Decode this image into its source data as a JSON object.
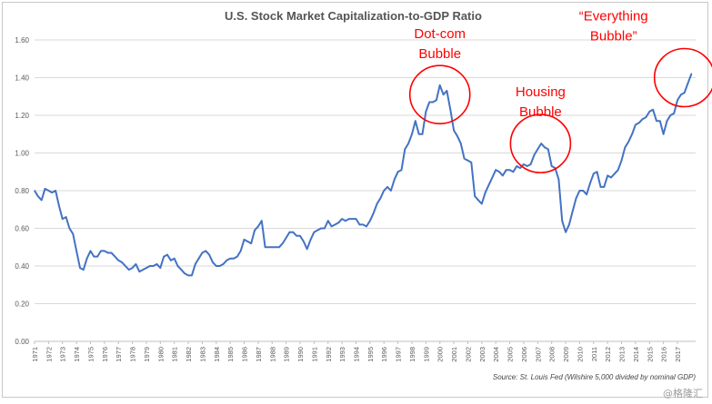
{
  "chart_data": {
    "type": "line",
    "title": "U.S. Stock Market Capitalization-to-GDP Ratio",
    "source": "Source: St. Louis Fed (Wilshire 5,000 divided by nominal GDP)",
    "xlabel": "",
    "ylabel": "",
    "ylim": [
      0,
      1.6
    ],
    "yticks": [
      "0.00",
      "0.20",
      "0.40",
      "0.60",
      "0.80",
      "1.00",
      "1.20",
      "1.40",
      "1.60"
    ],
    "xlim": [
      1971,
      2018.3
    ],
    "xticks": [
      "1971",
      "1972",
      "1973",
      "1974",
      "1975",
      "1976",
      "1977",
      "1978",
      "1979",
      "1980",
      "1981",
      "1982",
      "1983",
      "1984",
      "1985",
      "1986",
      "1987",
      "1988",
      "1989",
      "1990",
      "1991",
      "1992",
      "1993",
      "1994",
      "1995",
      "1996",
      "1997",
      "1998",
      "1999",
      "2000",
      "2001",
      "2002",
      "2003",
      "2004",
      "2005",
      "2006",
      "2007",
      "2008",
      "2009",
      "2010",
      "2011",
      "2012",
      "2013",
      "2014",
      "2015",
      "2016",
      "2017"
    ],
    "grid": true,
    "series_color": "#4472c4",
    "series": [
      {
        "x": [
          1971.0,
          1971.25,
          1971.5,
          1971.75,
          1972.0,
          1972.25,
          1972.5,
          1972.75,
          1973.0,
          1973.25,
          1973.5,
          1973.75,
          1974.0,
          1974.25,
          1974.5,
          1974.75,
          1975.0,
          1975.25,
          1975.5,
          1975.75,
          1976.0,
          1976.25,
          1976.5,
          1976.75,
          1977.0,
          1977.25,
          1977.5,
          1977.75,
          1978.0,
          1978.25,
          1978.5,
          1978.75,
          1979.0,
          1979.25,
          1979.5,
          1979.75,
          1980.0,
          1980.25,
          1980.5,
          1980.75,
          1981.0,
          1981.25,
          1981.5,
          1981.75,
          1982.0,
          1982.25,
          1982.5,
          1982.75,
          1983.0,
          1983.25,
          1983.5,
          1983.75,
          1984.0,
          1984.25,
          1984.5,
          1984.75,
          1985.0,
          1985.25,
          1985.5,
          1985.75,
          1986.0,
          1986.25,
          1986.5,
          1986.75,
          1987.0,
          1987.25,
          1987.5,
          1987.75,
          1988.0,
          1988.25,
          1988.5,
          1988.75,
          1989.0,
          1989.25,
          1989.5,
          1989.75,
          1990.0,
          1990.25,
          1990.5,
          1990.75,
          1991.0,
          1991.25,
          1991.5,
          1991.75,
          1992.0,
          1992.25,
          1992.5,
          1992.75,
          1993.0,
          1993.25,
          1993.5,
          1993.75,
          1994.0,
          1994.25,
          1994.5,
          1994.75,
          1995.0,
          1995.25,
          1995.5,
          1995.75,
          1996.0,
          1996.25,
          1996.5,
          1996.75,
          1997.0,
          1997.25,
          1997.5,
          1997.75,
          1998.0,
          1998.25,
          1998.5,
          1998.75,
          1999.0,
          1999.25,
          1999.5,
          1999.75,
          2000.0,
          2000.25,
          2000.5,
          2000.75,
          2001.0,
          2001.25,
          2001.5,
          2001.75,
          2002.0,
          2002.25,
          2002.5,
          2002.75,
          2003.0,
          2003.25,
          2003.5,
          2003.75,
          2004.0,
          2004.25,
          2004.5,
          2004.75,
          2005.0,
          2005.25,
          2005.5,
          2005.75,
          2006.0,
          2006.25,
          2006.5,
          2006.75,
          2007.0,
          2007.25,
          2007.5,
          2007.75,
          2008.0,
          2008.25,
          2008.5,
          2008.75,
          2009.0,
          2009.25,
          2009.5,
          2009.75,
          2010.0,
          2010.25,
          2010.5,
          2010.75,
          2011.0,
          2011.25,
          2011.5,
          2011.75,
          2012.0,
          2012.25,
          2012.5,
          2012.75,
          2013.0,
          2013.25,
          2013.5,
          2013.75,
          2014.0,
          2014.25,
          2014.5,
          2014.75,
          2015.0,
          2015.25,
          2015.5,
          2015.75,
          2016.0,
          2016.25,
          2016.5,
          2016.75,
          2017.0,
          2017.25,
          2017.5,
          2017.75,
          2018.0
        ],
        "values": [
          0.8,
          0.77,
          0.75,
          0.81,
          0.8,
          0.79,
          0.8,
          0.72,
          0.65,
          0.66,
          0.6,
          0.57,
          0.48,
          0.39,
          0.38,
          0.44,
          0.48,
          0.45,
          0.45,
          0.48,
          0.48,
          0.47,
          0.47,
          0.45,
          0.43,
          0.42,
          0.4,
          0.38,
          0.39,
          0.41,
          0.37,
          0.38,
          0.39,
          0.4,
          0.4,
          0.41,
          0.39,
          0.45,
          0.46,
          0.43,
          0.44,
          0.4,
          0.38,
          0.36,
          0.35,
          0.35,
          0.41,
          0.44,
          0.47,
          0.48,
          0.46,
          0.42,
          0.4,
          0.4,
          0.41,
          0.43,
          0.44,
          0.44,
          0.45,
          0.48,
          0.54,
          0.53,
          0.52,
          0.59,
          0.61,
          0.64,
          0.5,
          0.5,
          0.5,
          0.5,
          0.5,
          0.52,
          0.55,
          0.58,
          0.58,
          0.56,
          0.56,
          0.53,
          0.49,
          0.54,
          0.58,
          0.59,
          0.6,
          0.6,
          0.64,
          0.61,
          0.62,
          0.63,
          0.65,
          0.64,
          0.65,
          0.65,
          0.65,
          0.62,
          0.62,
          0.61,
          0.64,
          0.68,
          0.73,
          0.76,
          0.8,
          0.82,
          0.8,
          0.86,
          0.9,
          0.91,
          1.02,
          1.05,
          1.1,
          1.17,
          1.1,
          1.1,
          1.22,
          1.27,
          1.27,
          1.28,
          1.36,
          1.31,
          1.33,
          1.23,
          1.12,
          1.09,
          1.05,
          0.97,
          0.96,
          0.95,
          0.77,
          0.75,
          0.73,
          0.79,
          0.83,
          0.87,
          0.91,
          0.9,
          0.88,
          0.91,
          0.91,
          0.9,
          0.93,
          0.92,
          0.94,
          0.93,
          0.94,
          0.99,
          1.02,
          1.05,
          1.03,
          1.02,
          0.93,
          0.92,
          0.86,
          0.64,
          0.58,
          0.62,
          0.69,
          0.76,
          0.8,
          0.8,
          0.78,
          0.84,
          0.89,
          0.9,
          0.82,
          0.82,
          0.88,
          0.87,
          0.89,
          0.91,
          0.96,
          1.03,
          1.06,
          1.1,
          1.15,
          1.16,
          1.18,
          1.19,
          1.22,
          1.23,
          1.17,
          1.17,
          1.1,
          1.17,
          1.2,
          1.21,
          1.28,
          1.31,
          1.32,
          1.37,
          1.42
        ]
      }
    ],
    "annotations": [
      {
        "label_lines": [
          "Dot-com",
          "Bubble"
        ],
        "x": 2000.0,
        "y": 1.31
      },
      {
        "label_lines": [
          "Housing",
          "Bubble"
        ],
        "x": 2007.2,
        "y": 1.05
      },
      {
        "label_lines": [
          "“Everything",
          "Bubble”"
        ],
        "x": 2017.5,
        "y": 1.4
      }
    ],
    "annotation_color": "#ff0000"
  },
  "watermark": "@格隆汇"
}
